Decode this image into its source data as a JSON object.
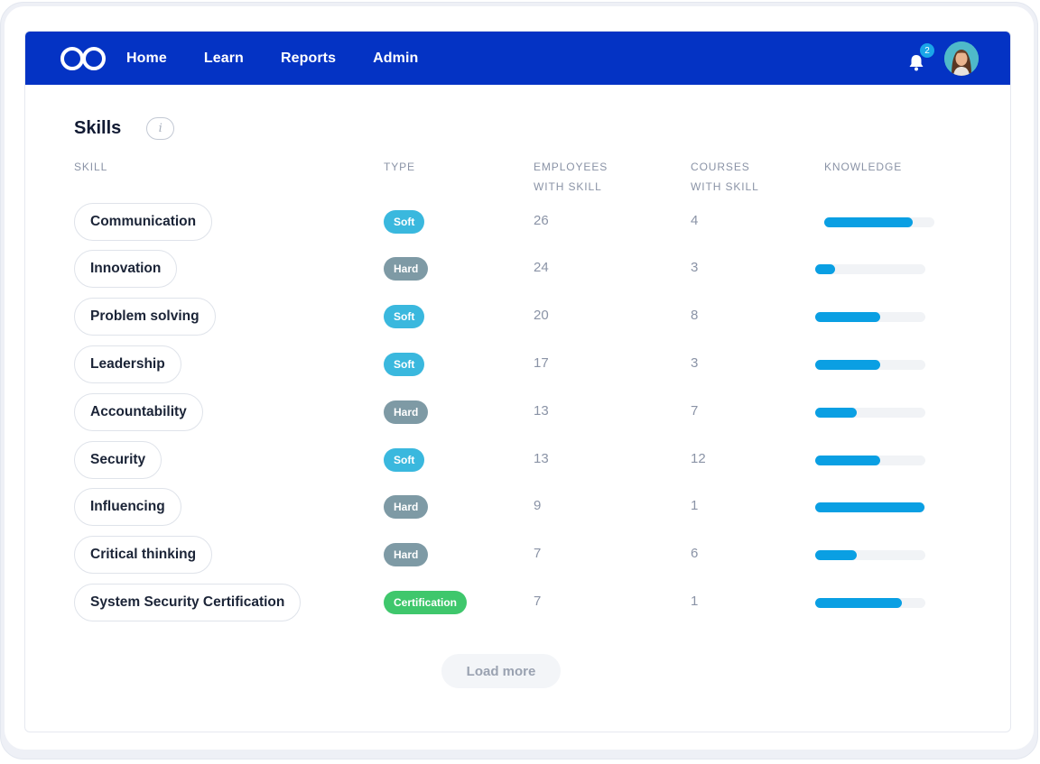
{
  "nav": {
    "items": [
      {
        "label": "Home"
      },
      {
        "label": "Learn"
      },
      {
        "label": "Reports"
      },
      {
        "label": "Admin"
      }
    ],
    "notification_count": "2"
  },
  "page": {
    "title": "Skills",
    "info_icon": "i"
  },
  "table": {
    "headers": {
      "skill": "SKILL",
      "type": "TYPE",
      "employees_line1": "EMPLOYEES",
      "employees_line2": "WITH SKILL",
      "courses_line1": "COURSES",
      "courses_line2": "WITH SKILL",
      "knowledge": "KNOWLEDGE"
    },
    "rows": [
      {
        "skill": "Communication",
        "type": "Soft",
        "employees": "26",
        "courses": "4",
        "knowledge": 0.8
      },
      {
        "skill": "Innovation",
        "type": "Hard",
        "employees": "24",
        "courses": "3",
        "knowledge": 0.18
      },
      {
        "skill": "Problem solving",
        "type": "Soft",
        "employees": "20",
        "courses": "8",
        "knowledge": 0.59
      },
      {
        "skill": "Leadership",
        "type": "Soft",
        "employees": "17",
        "courses": "3",
        "knowledge": 0.59
      },
      {
        "skill": "Accountability",
        "type": "Hard",
        "employees": "13",
        "courses": "7",
        "knowledge": 0.38
      },
      {
        "skill": "Security",
        "type": "Soft",
        "employees": "13",
        "courses": "12",
        "knowledge": 0.59
      },
      {
        "skill": "Influencing",
        "type": "Hard",
        "employees": "9",
        "courses": "1",
        "knowledge": 0.99
      },
      {
        "skill": "Critical thinking",
        "type": "Hard",
        "employees": "7",
        "courses": "6",
        "knowledge": 0.38
      },
      {
        "skill": "System Security Certification",
        "type": "Certification",
        "employees": "7",
        "courses": "1",
        "knowledge": 0.79
      }
    ]
  },
  "load_more_label": "Load more",
  "colors": {
    "nav_bg": "#0433c4",
    "soft": "#3ab8de",
    "hard": "#7e9aa5",
    "certification": "#3fc76c",
    "knowledge_bar": "#0a9fe3"
  },
  "icons": [
    "logo-icon",
    "info-icon",
    "bell-icon",
    "avatar"
  ]
}
